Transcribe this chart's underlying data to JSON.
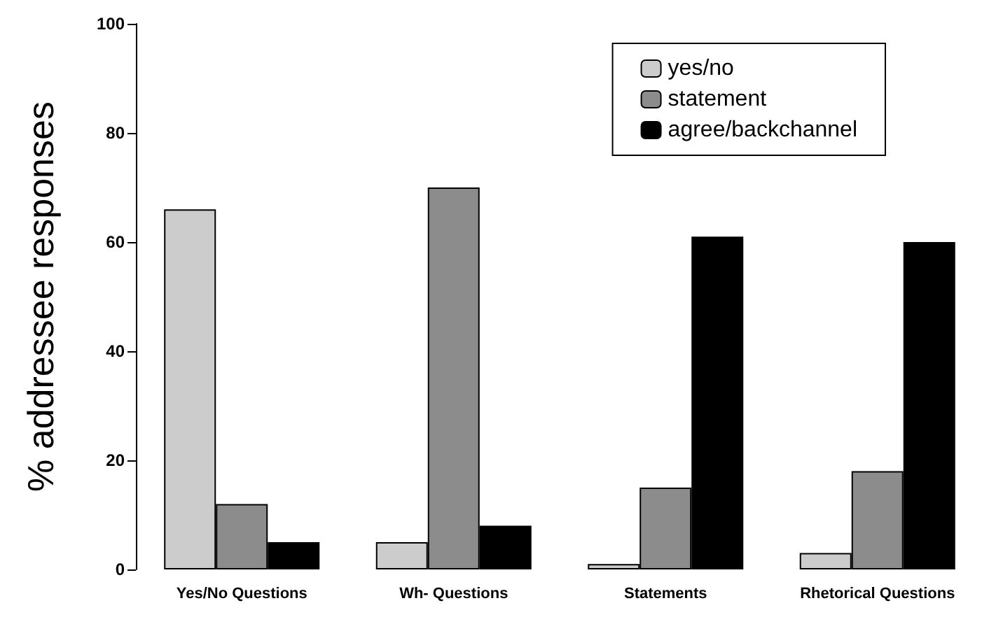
{
  "chart_data": {
    "type": "bar",
    "ylabel": "% addressee responses",
    "categories": [
      "Yes/No Questions",
      "Wh- Questions",
      "Statements",
      "Rhetorical Questions"
    ],
    "series": [
      {
        "name": "yes/no",
        "color": "#cccccc",
        "values": [
          66,
          5,
          1,
          3
        ]
      },
      {
        "name": "statement",
        "color": "#8c8c8c",
        "values": [
          12,
          70,
          15,
          18
        ]
      },
      {
        "name": "agree/backchannel",
        "color": "#000000",
        "values": [
          5,
          8,
          61,
          60
        ]
      }
    ],
    "ylim": [
      0,
      100
    ],
    "yticks": [
      0,
      20,
      40,
      60,
      80,
      100
    ],
    "grid": false,
    "legend": "top right"
  }
}
